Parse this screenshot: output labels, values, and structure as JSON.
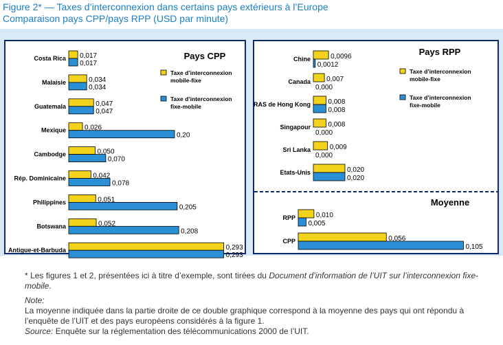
{
  "title": "Figure 2* — Taxes d’interconnexion dans certains pays extérieurs à l’Europe",
  "subtitle": "Comparaison pays CPP/pays RPP (USD par minute)",
  "colors": {
    "mobile_fixe": "#f2d21a",
    "fixe_mobile": "#2b8fd6",
    "background": "#d8e8f4",
    "border": "#0d2a6b",
    "title": "#1a7fc4"
  },
  "legend": {
    "mobile_fixe": [
      "Taxe d’interconnexion",
      "mobile-fixe"
    ],
    "fixe_mobile": [
      "Taxe d’interconnexion",
      "fixe-mobile"
    ]
  },
  "chart_data": [
    {
      "type": "bar",
      "orientation": "horizontal",
      "title": "Pays CPP",
      "categories": [
        "Costa Rica",
        "Malaisie",
        "Guatemala",
        "Mexique",
        "Cambodge",
        "Rép. Dominicaine",
        "Philippines",
        "Botswana",
        "Antigue-et-Barbuda"
      ],
      "series": [
        {
          "name": "Taxe d’interconnexion mobile-fixe",
          "values": [
            0.017,
            0.034,
            0.047,
            0.026,
            0.05,
            0.042,
            0.051,
            0.052,
            0.293
          ],
          "labels": [
            "0,017",
            "0,034",
            "0,047",
            "0,026",
            "0,050",
            "0,042",
            "0,051",
            "0,052",
            "0,293"
          ]
        },
        {
          "name": "Taxe d’interconnexion fixe-mobile",
          "values": [
            0.017,
            0.034,
            0.047,
            0.2,
            0.07,
            0.078,
            0.205,
            0.208,
            0.293
          ],
          "labels": [
            "0,017",
            "0,034",
            "0,047",
            "0,20",
            "0,070",
            "0,078",
            "0,205",
            "0,208",
            "0,293"
          ]
        }
      ],
      "legend_position": "top-right"
    },
    {
      "type": "bar",
      "orientation": "horizontal",
      "title": "Pays RPP",
      "categories": [
        "Chine",
        "Canada",
        "RAS de Hong Kong",
        "Singapour",
        "Sri Lanka",
        "Etats-Unis"
      ],
      "series": [
        {
          "name": "Taxe d’interconnexion mobile-fixe",
          "values": [
            0.0096,
            0.007,
            0.008,
            0.008,
            0.009,
            0.02
          ],
          "labels": [
            "0,0096",
            "0,007",
            "0,008",
            "0,008",
            "0,009",
            "0,020"
          ]
        },
        {
          "name": "Taxe d’interconnexion fixe-mobile",
          "values": [
            0.0012,
            0.0,
            0.008,
            0.0,
            0.0,
            0.02
          ],
          "labels": [
            "0,0012",
            "0,000",
            "0,008",
            "0,000",
            "0,000",
            "0,020"
          ]
        }
      ],
      "legend_position": "top-right"
    },
    {
      "type": "bar",
      "orientation": "horizontal",
      "title": "Moyenne",
      "categories": [
        "RPP",
        "CPP"
      ],
      "series": [
        {
          "name": "Taxe d’interconnexion mobile-fixe",
          "values": [
            0.01,
            0.056
          ],
          "labels": [
            "0,010",
            "0,056"
          ]
        },
        {
          "name": "Taxe d’interconnexion fixe-mobile",
          "values": [
            0.005,
            0.105
          ],
          "labels": [
            "0,005",
            "0,105"
          ]
        }
      ]
    }
  ],
  "notes": {
    "footnote_star": "*",
    "footnote_pre": " Les figures 1 et 2, présentées ici à titre d’exemple, sont tirées du ",
    "footnote_doc": "Document d’information de l’UIT sur l’interconnexion fixe-mobile",
    "footnote_post": ".",
    "note_label": "Note:",
    "note_text": "La moyenne indiquée dans la partie droite de ce double graphique correspond à la moyenne des pays qui ont répondu à l’enquête de l’UIT et des pays européens considérés à la figure 1.",
    "source_label": "Source:",
    "source_text": " Enquête sur la réglementation des télécommunications 2000 de l’UIT."
  }
}
